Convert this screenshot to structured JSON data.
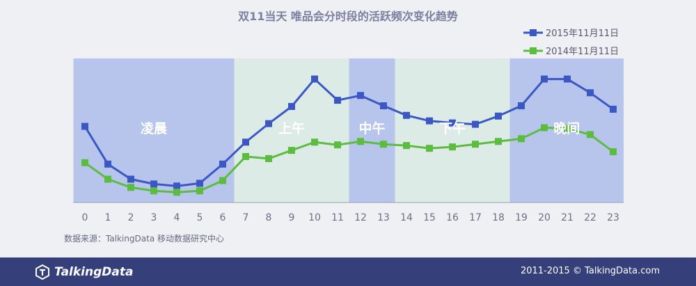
{
  "chart_data": {
    "type": "line",
    "title": "双11当天 唯品会分时段的活跃频次变化趋势",
    "x": [
      "0",
      "1",
      "2",
      "3",
      "4",
      "5",
      "6",
      "7",
      "8",
      "9",
      "10",
      "11",
      "12",
      "13",
      "14",
      "15",
      "16",
      "17",
      "18",
      "19",
      "20",
      "21",
      "22",
      "23"
    ],
    "series": [
      {
        "name": "2015年11月11日",
        "color": "#3a57c4",
        "values": [
          111,
          56,
          34,
          27,
          24,
          28,
          56,
          88,
          115,
          140,
          180,
          149,
          156,
          141,
          127,
          119,
          116,
          114,
          126,
          141,
          180,
          180,
          160,
          136
        ]
      },
      {
        "name": "2014年11月11日",
        "color": "#5cbc3f",
        "values": [
          58,
          34,
          22,
          17,
          15,
          17,
          32,
          67,
          64,
          76,
          88,
          84,
          89,
          85,
          83,
          79,
          81,
          85,
          89,
          93,
          109,
          108,
          99,
          74
        ]
      }
    ],
    "ylim": [
      0,
      210
    ],
    "grid": false,
    "legend_position": "top-right",
    "bands": [
      {
        "label": "凌晨",
        "from": -0.5,
        "to": 6.5,
        "color": "#b7c4ec"
      },
      {
        "label": "上午",
        "from": 6.5,
        "to": 11.5,
        "color": "#dcebe5"
      },
      {
        "label": "中午",
        "from": 11.5,
        "to": 13.5,
        "color": "#b7c4ec"
      },
      {
        "label": "下午",
        "from": 13.5,
        "to": 18.5,
        "color": "#dcebe5"
      },
      {
        "label": "晚间",
        "from": 18.5,
        "to": 23.5,
        "color": "#b7c4ec"
      }
    ]
  },
  "source_text": "数据来源：TalkingData 移动数据研究中心",
  "footer": {
    "logo_text": "TalkingData",
    "copyright": "2011-2015 © TalkingData.com"
  }
}
